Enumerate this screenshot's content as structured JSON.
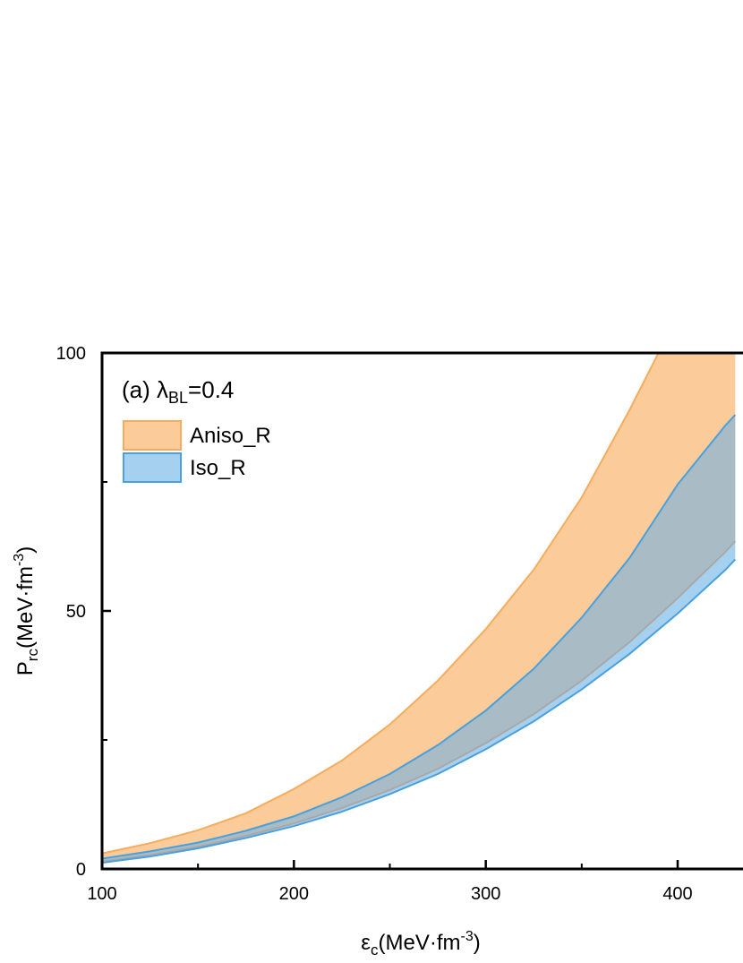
{
  "chart_data": {
    "type": "area",
    "panel_label": "(a)",
    "panel_param_symbol": "λ",
    "panel_param_sub": "BL",
    "panel_param_value": "=0.4",
    "xlabel_symbol": "ε",
    "xlabel_sub": "c",
    "xlabel_unit_base": "(MeV·fm",
    "xlabel_unit_exp": "-3",
    "xlabel_unit_end": ")",
    "ylabel_symbol": "P",
    "ylabel_sub": "rc",
    "ylabel_unit_base": "(MeV·fm",
    "ylabel_unit_exp": "-3",
    "ylabel_unit_end": ")",
    "xlim": [
      100,
      430
    ],
    "ylim": [
      0,
      100
    ],
    "x_ticks": [
      "100",
      "200",
      "300",
      "400"
    ],
    "y_ticks": [
      "0",
      "50",
      "100"
    ],
    "y_minor_ticks": [
      25,
      75
    ],
    "x_minor_ticks": [
      150,
      250,
      350
    ],
    "series": [
      {
        "name": "Aniso_R",
        "color_fill": "#fbcc99",
        "color_edge": "#f5ac5e",
        "x": [
          100,
          125,
          150,
          175,
          200,
          225,
          250,
          275,
          300,
          325,
          350,
          375,
          390,
          400,
          425,
          430
        ],
        "upper": [
          3.0,
          5.0,
          7.5,
          10.8,
          15.5,
          21.0,
          28.0,
          36.5,
          46.5,
          58.0,
          72.0,
          89.0,
          100,
          100,
          100,
          100
        ],
        "lower": [
          2.0,
          3.4,
          5.1,
          7.4,
          10.2,
          13.9,
          18.4,
          24.0,
          30.7,
          38.8,
          48.7,
          60.3,
          68.5,
          74.5,
          86.0,
          88.0
        ]
      },
      {
        "name": "Iso_R",
        "color_fill": "#a5d0ef",
        "color_edge": "#4aa0dc",
        "x": [
          100,
          125,
          150,
          175,
          200,
          225,
          250,
          275,
          300,
          325,
          350,
          375,
          400,
          425,
          430
        ],
        "upper": [
          2.0,
          3.4,
          5.1,
          7.4,
          10.2,
          13.9,
          18.4,
          24.0,
          30.7,
          38.8,
          48.7,
          60.3,
          74.5,
          86.0,
          88.0
        ],
        "lower": [
          1.2,
          2.4,
          4.0,
          6.0,
          8.3,
          11.1,
          14.5,
          18.4,
          23.2,
          28.6,
          34.8,
          41.7,
          49.5,
          58.0,
          60.0
        ],
        "aniso_lower": [
          1.4,
          2.7,
          4.3,
          6.4,
          8.8,
          11.8,
          15.3,
          19.4,
          24.4,
          30.0,
          36.5,
          44.0,
          52.5,
          61.5,
          63.5
        ]
      }
    ]
  }
}
